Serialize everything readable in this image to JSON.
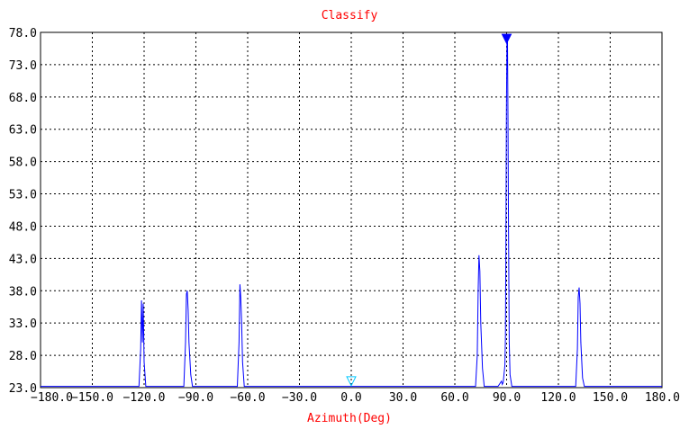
{
  "chart_data": {
    "type": "line",
    "title": "Classify",
    "xlabel": "Azimuth(Deg)",
    "ylabel": "",
    "xlim": [
      -180,
      180
    ],
    "ylim": [
      23,
      78
    ],
    "grid": true,
    "x_ticks": [
      "-180.0",
      "-150.0",
      "-120.0",
      "-90.0",
      "-60.0",
      "-30.0",
      "0.0",
      "30.0",
      "60.0",
      "90.0",
      "120.0",
      "150.0",
      "180.0"
    ],
    "y_ticks": [
      "23.0",
      "28.0",
      "33.0",
      "38.0",
      "43.0",
      "48.0",
      "53.0",
      "58.0",
      "63.0",
      "68.0",
      "73.0",
      "78.0"
    ],
    "series": [
      {
        "x": [
          -180,
          -123,
          -122,
          -121.5,
          -121,
          -120.5,
          -120,
          -119,
          -97,
          -96,
          -95.5,
          -95,
          -94.5,
          -94,
          -93,
          -92,
          -66,
          -65,
          -64.5,
          -64,
          -63.5,
          -63,
          -62,
          -56,
          72,
          73,
          73.5,
          74,
          74.5,
          75,
          76,
          77,
          80,
          85,
          87,
          87.5,
          88,
          89,
          89.3,
          89.6,
          89.9,
          90.2,
          90.5,
          90.8,
          91.1,
          91.5,
          92,
          93,
          130,
          131,
          131.5,
          132,
          132.5,
          133,
          134,
          135,
          180
        ],
        "y": [
          23.2,
          23.2,
          29,
          36.5,
          30,
          36,
          27,
          23.2,
          23.2,
          30,
          37.5,
          38,
          35,
          30,
          25,
          23.2,
          23.2,
          30,
          39,
          37,
          33,
          27,
          23.2,
          23.2,
          23.2,
          28,
          38,
          43.5,
          41,
          33,
          26,
          23.2,
          23.2,
          23.2,
          24,
          23.5,
          23.8,
          26.5,
          31,
          45,
          66,
          77,
          76.5,
          65,
          48,
          30,
          25,
          23.2,
          23.2,
          29,
          37,
          38.5,
          36,
          30,
          24.5,
          23.2,
          23.2
        ]
      }
    ],
    "annotations": [
      {
        "type": "marker",
        "shape": "filled-triangle-down",
        "x": 90,
        "y": 77,
        "color": "#0000ff"
      },
      {
        "type": "marker",
        "shape": "hollow-triangle-down",
        "x": 0,
        "y": 24,
        "color": "#00c8ff"
      }
    ],
    "colors": {
      "line": "#0000ff",
      "title": "#ff0000",
      "xlabel": "#ff0000",
      "ticks": "#000000",
      "grid": "#000000"
    }
  }
}
